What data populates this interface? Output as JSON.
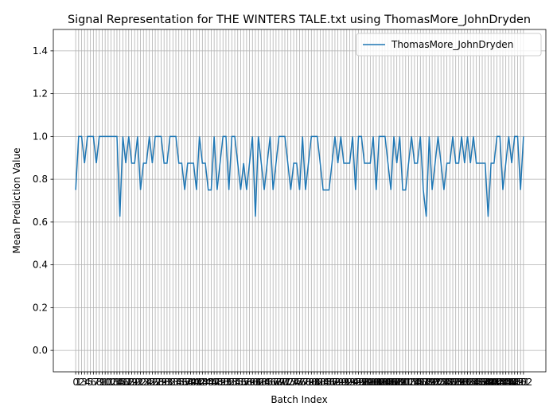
{
  "chart_data": {
    "type": "line",
    "title": "Signal Representation for THE WINTERS TALE.txt using ThomasMore_JohnDryden",
    "x_label": "Batch Index",
    "y_label": "Mean Prediction Value",
    "grid": true,
    "legend": "upper right",
    "x": [
      0,
      1,
      2,
      3,
      4,
      5,
      6,
      7,
      8,
      9,
      10,
      11,
      12,
      13,
      14,
      15,
      16,
      17,
      18,
      19,
      20,
      21,
      22,
      23,
      24,
      25,
      26,
      27,
      28,
      29,
      30,
      31,
      32,
      33,
      34,
      35,
      36,
      37,
      38,
      39,
      40,
      41,
      42,
      43,
      44,
      45,
      46,
      47,
      48,
      49,
      50,
      51,
      52,
      53,
      54,
      55,
      56,
      57,
      58,
      59,
      60,
      61,
      62,
      63,
      64,
      65,
      66,
      67,
      68,
      69,
      70,
      71,
      72,
      73,
      74,
      75,
      76,
      77,
      78,
      79,
      80,
      81,
      82,
      83,
      84,
      85,
      86,
      87,
      88,
      89,
      90,
      91,
      92,
      93,
      94,
      95,
      96,
      97,
      98,
      99,
      100,
      101,
      102,
      103,
      104,
      105,
      106,
      107,
      108,
      109,
      110,
      111,
      112,
      113,
      114,
      115,
      116,
      117,
      118,
      119,
      120,
      121,
      122,
      123,
      124,
      125,
      126,
      127,
      128,
      129,
      130,
      131,
      132,
      133,
      134,
      135,
      136,
      137,
      138,
      139,
      140,
      141,
      142,
      143,
      144,
      145,
      146,
      147,
      148,
      149,
      150,
      151,
      152
    ],
    "series": [
      {
        "name": "ThomasMore_JohnDryden",
        "color": "#1f77b4",
        "values": [
          0.75,
          1,
          1,
          0.875,
          1,
          1,
          1,
          0.875,
          1,
          1,
          1,
          1,
          1,
          1,
          1,
          0.625,
          1,
          0.875,
          1,
          0.875,
          0.875,
          1,
          0.75,
          0.875,
          0.875,
          1,
          0.875,
          1,
          1,
          1,
          0.875,
          0.875,
          1,
          1,
          1,
          0.875,
          0.875,
          0.75,
          0.875,
          0.875,
          0.875,
          0.75,
          1,
          0.875,
          0.875,
          0.75,
          0.75,
          1,
          0.75,
          0.875,
          1,
          1,
          0.75,
          1,
          1,
          0.875,
          0.75,
          0.875,
          0.75,
          0.875,
          1,
          0.625,
          1,
          0.875,
          0.75,
          0.875,
          1,
          0.75,
          0.875,
          1,
          1,
          1,
          0.875,
          0.75,
          0.875,
          0.875,
          0.75,
          1,
          0.75,
          0.875,
          1,
          1,
          1,
          0.875,
          0.75,
          0.75,
          0.75,
          0.875,
          1,
          0.875,
          1,
          0.875,
          0.875,
          0.875,
          1,
          0.75,
          1,
          1,
          0.875,
          0.875,
          0.875,
          1,
          0.75,
          1,
          1,
          1,
          0.875,
          0.75,
          1,
          0.875,
          1,
          0.75,
          0.75,
          0.875,
          1,
          0.875,
          0.875,
          1,
          0.75,
          0.625,
          1,
          0.75,
          0.875,
          1,
          0.875,
          0.75,
          0.875,
          0.875,
          1,
          0.875,
          0.875,
          1,
          0.875,
          1,
          0.875,
          1,
          0.875,
          0.875,
          0.875,
          0.875,
          0.625,
          0.875,
          0.875,
          1,
          1,
          0.75,
          0.875,
          1,
          0.875,
          1,
          1,
          0.75,
          1
        ]
      }
    ],
    "xlim": [
      -7.6,
      159.6
    ],
    "xticks": [
      0,
      1,
      2,
      3,
      4,
      5,
      6,
      7,
      8,
      9,
      10,
      11,
      12,
      13,
      14,
      15,
      16,
      17,
      18,
      19,
      20,
      21,
      22,
      23,
      24,
      25,
      26,
      27,
      28,
      29,
      30,
      31,
      32,
      33,
      34,
      35,
      36,
      37,
      38,
      39,
      40,
      41,
      42,
      43,
      44,
      45,
      46,
      47,
      48,
      49,
      50,
      51,
      52,
      53,
      54,
      55,
      56,
      57,
      58,
      59,
      60,
      61,
      62,
      63,
      64,
      65,
      66,
      67,
      68,
      69,
      70,
      71,
      72,
      73,
      74,
      75,
      76,
      77,
      78,
      79,
      80,
      81,
      82,
      83,
      84,
      85,
      86,
      87,
      88,
      89,
      90,
      91,
      92,
      93,
      94,
      95,
      96,
      97,
      98,
      99,
      100,
      101,
      102,
      103,
      104,
      105,
      106,
      107,
      108,
      109,
      110,
      111,
      112,
      113,
      114,
      115,
      116,
      117,
      118,
      119,
      120,
      121,
      122,
      123,
      124,
      125,
      126,
      127,
      128,
      129,
      130,
      131,
      132,
      133,
      134,
      135,
      136,
      137,
      138,
      139,
      140,
      141,
      142,
      143,
      144,
      145,
      146,
      147,
      148,
      149,
      150,
      151,
      152
    ],
    "ylim": [
      -0.1,
      1.5
    ],
    "yticks": [
      {
        "value": 0,
        "label": "0.0"
      },
      0.2,
      0.4,
      0.6,
      0.8,
      {
        "value": 1,
        "label": "1.0"
      },
      1.2,
      1.4
    ]
  }
}
